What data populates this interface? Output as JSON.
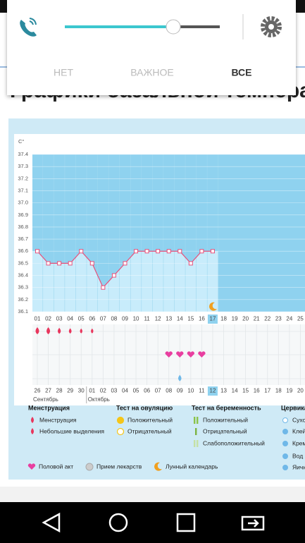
{
  "notification_panel": {
    "tabs": [
      "НЕТ",
      "ВАЖНОЕ",
      "ВСЕ"
    ],
    "active_tab": 2
  },
  "page": {
    "heading": "Графики базальной темпера"
  },
  "chart_data": {
    "type": "line",
    "y_label": "C°",
    "categories": [
      "01",
      "02",
      "03",
      "04",
      "05",
      "06",
      "07",
      "08",
      "09",
      "10",
      "11",
      "12",
      "13",
      "14",
      "15",
      "16",
      "17",
      "18",
      "19",
      "20",
      "21",
      "22",
      "23",
      "24",
      "25"
    ],
    "values": [
      36.6,
      36.5,
      36.5,
      36.5,
      36.6,
      36.5,
      36.3,
      36.4,
      36.5,
      36.6,
      36.6,
      36.6,
      36.6,
      36.6,
      36.5,
      36.6,
      36.6,
      null,
      null,
      null,
      null,
      null,
      null,
      null,
      null
    ],
    "color": "#e8507a",
    "ylim": [
      36.1,
      37.4
    ],
    "yticks": [
      36.1,
      36.2,
      36.3,
      36.4,
      36.5,
      36.6,
      36.7,
      36.8,
      36.9,
      {
        "value": 37,
        "label": "37.0"
      },
      37.1,
      37.2,
      37.3,
      37.4
    ],
    "grid": true,
    "cycle_days": [
      "26",
      "27",
      "28",
      "29",
      "30",
      "01",
      "02",
      "03",
      "04",
      "05",
      "06",
      "07",
      "08",
      "09",
      "10",
      "11",
      "12",
      "13",
      "14",
      "15",
      "16",
      "17",
      "18",
      "19",
      "20"
    ],
    "weekend_indices": [
      4,
      5,
      11,
      12,
      18,
      19
    ],
    "weekend_color": "#e8365d",
    "selected_index": 16,
    "months": [
      {
        "label": "Сентябрь",
        "index": 0
      },
      {
        "label": "Октябрь",
        "index": 5
      }
    ]
  },
  "legend": {
    "groups": [
      {
        "title": "Менструация",
        "items": [
          "Менструация",
          "Небольшие выделения"
        ]
      },
      {
        "title": "Тест на овуляцию",
        "items": [
          "Положительный",
          "Отрицательный"
        ]
      },
      {
        "title": "Тест на беременность",
        "items": [
          "Положительный",
          "Отрицательный",
          "Слабоположительный"
        ]
      },
      {
        "title": "Цервика",
        "items": [
          "Сухо",
          "Клей",
          "Крем",
          "Вод",
          "Яичн"
        ]
      }
    ],
    "bottom": [
      "Половой акт",
      "Прием лекарств",
      "Лунный календарь"
    ]
  }
}
